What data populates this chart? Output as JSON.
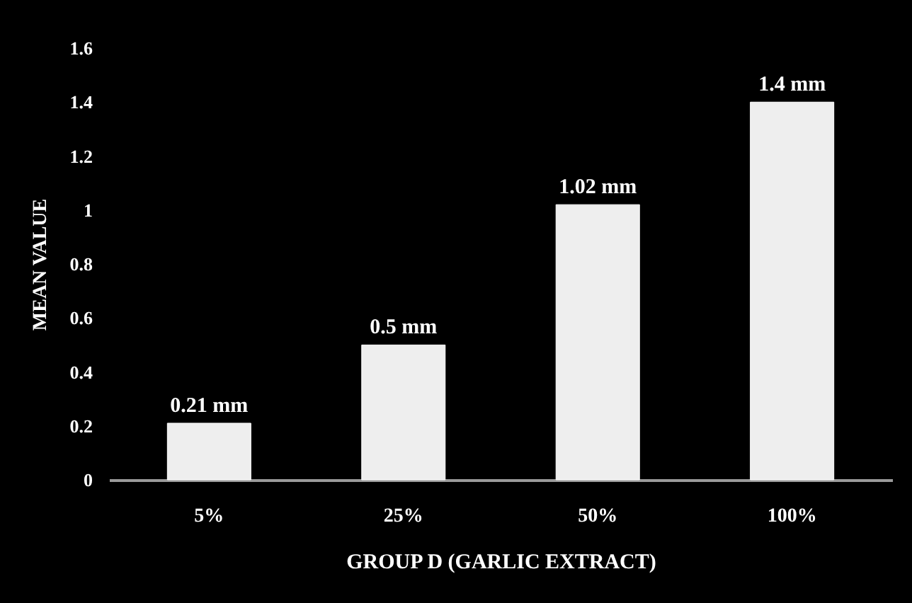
{
  "chart_data": {
    "type": "bar",
    "xlabel": "GROUP D (GARLIC EXTRACT)",
    "ylabel": "MEAN VALUE",
    "categories": [
      "5%",
      "25%",
      "50%",
      "100%"
    ],
    "values": [
      0.21,
      0.5,
      1.02,
      1.4
    ],
    "value_labels": [
      "0.21 mm",
      "0.5 mm",
      "1.02 mm",
      "1.4 mm"
    ],
    "color": "#eeeeee",
    "ylim": [
      0,
      1.6
    ],
    "yticks": [
      0,
      0.2,
      0.4,
      0.6,
      0.8,
      1,
      1.2,
      1.4,
      1.6
    ],
    "grid": false
  }
}
